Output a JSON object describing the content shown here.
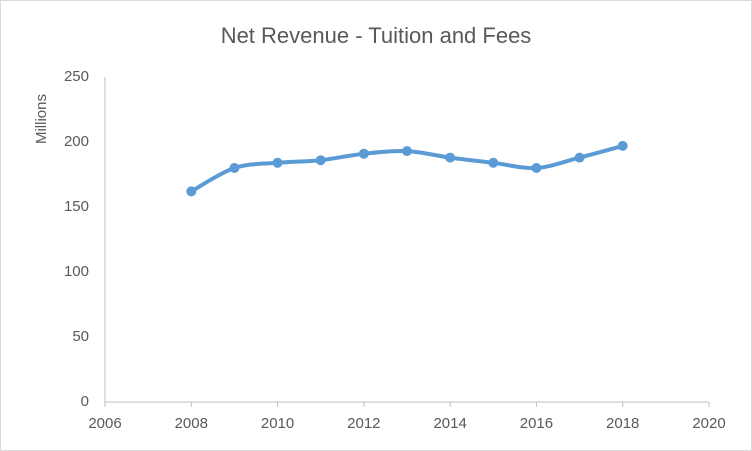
{
  "chart_data": {
    "type": "line",
    "title": "Net Revenue - Tuition and Fees",
    "y_label": "Millions",
    "x": [
      2008,
      2009,
      2010,
      2011,
      2012,
      2013,
      2014,
      2015,
      2016,
      2017,
      2018
    ],
    "series": [
      {
        "name": "Net Revenue",
        "color": "#5b9bd5",
        "values": [
          162,
          180,
          184,
          186,
          191,
          193,
          188,
          184,
          180,
          188,
          197
        ]
      }
    ],
    "xlim": [
      2006,
      2020
    ],
    "xticks": [
      2006,
      2008,
      2010,
      2012,
      2014,
      2016,
      2018,
      2020
    ],
    "ylim": [
      0,
      250
    ],
    "yticks": [
      0,
      50,
      100,
      150,
      200,
      250
    ],
    "grid": false,
    "smooth": true,
    "markers": true
  }
}
